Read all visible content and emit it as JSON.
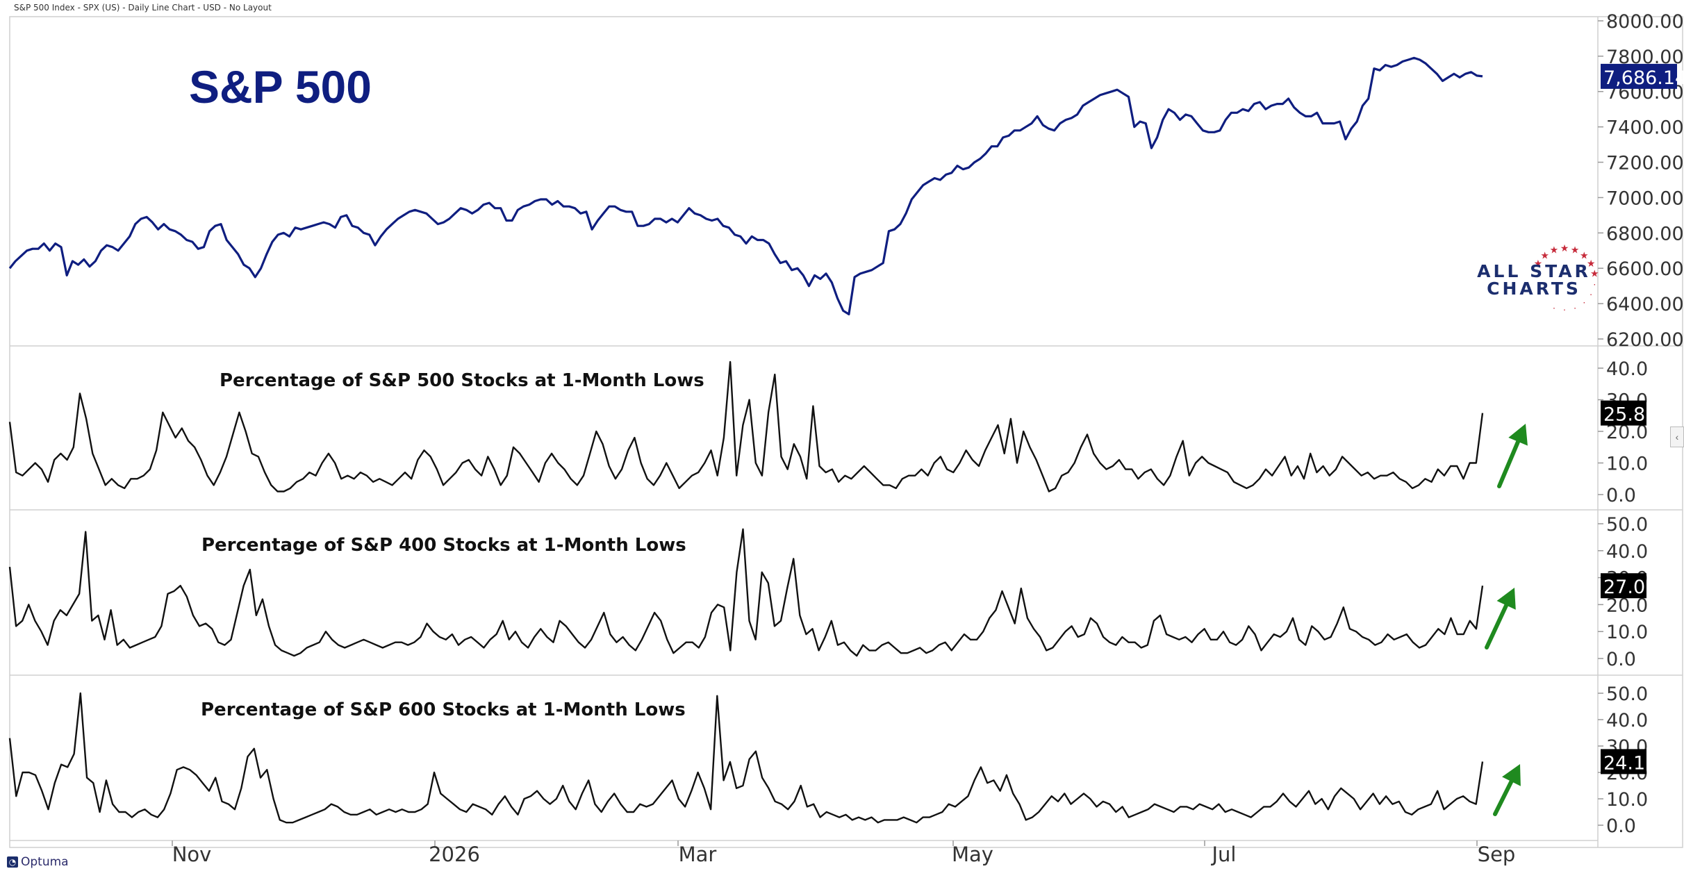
{
  "header": {
    "text": "S&P 500 Index - SPX (US) - Daily Line Chart - USD - No Layout"
  },
  "footer": {
    "logo_text": "Optuma"
  },
  "brand": {
    "line1": "ALL STAR",
    "line2": "CHARTS",
    "star_color": "#c62a3a"
  },
  "colors": {
    "price_line": "#0f1e80",
    "breadth_line": "#111111",
    "arrow": "#1f8a1f",
    "grid": "#d8d8d8",
    "label_bg_price": "#0f1e80",
    "label_bg_breadth": "#000000"
  },
  "x_axis": {
    "labels": [
      "Nov",
      "2026",
      "Mar",
      "May",
      "Jul",
      "Sep"
    ]
  },
  "chart_data": [
    {
      "type": "line",
      "title": "S&P 500",
      "ylim": [
        6200,
        8000
      ],
      "yticks": [
        "8000.00",
        "7800.00",
        "7600.00",
        "7400.00",
        "7200.00",
        "7000.00",
        "6800.00",
        "6600.00",
        "6400.00",
        "6200.00"
      ],
      "last_value": "7,686.14",
      "series": [
        {
          "values": [
            6600,
            6640,
            6670,
            6700,
            6710,
            6710,
            6740,
            6700,
            6740,
            6720,
            6560,
            6640,
            6620,
            6650,
            6610,
            6640,
            6700,
            6730,
            6720,
            6700,
            6740,
            6780,
            6850,
            6880,
            6890,
            6860,
            6820,
            6850,
            6820,
            6810,
            6790,
            6760,
            6750,
            6710,
            6720,
            6810,
            6840,
            6850,
            6760,
            6720,
            6680,
            6620,
            6600,
            6550,
            6600,
            6680,
            6750,
            6790,
            6800,
            6780,
            6830,
            6820,
            6830,
            6840,
            6850,
            6860,
            6850,
            6830,
            6890,
            6900,
            6840,
            6830,
            6800,
            6790,
            6730,
            6780,
            6820,
            6850,
            6880,
            6900,
            6920,
            6930,
            6920,
            6910,
            6880,
            6850,
            6860,
            6880,
            6910,
            6940,
            6930,
            6910,
            6930,
            6960,
            6970,
            6940,
            6940,
            6870,
            6870,
            6930,
            6950,
            6960,
            6980,
            6990,
            6990,
            6960,
            6980,
            6950,
            6950,
            6940,
            6910,
            6920,
            6820,
            6870,
            6910,
            6950,
            6950,
            6930,
            6920,
            6920,
            6840,
            6840,
            6850,
            6880,
            6880,
            6860,
            6880,
            6860,
            6900,
            6940,
            6910,
            6900,
            6880,
            6870,
            6880,
            6840,
            6830,
            6790,
            6780,
            6740,
            6780,
            6760,
            6760,
            6740,
            6680,
            6630,
            6640,
            6590,
            6600,
            6560,
            6500,
            6560,
            6540,
            6570,
            6520,
            6430,
            6360,
            6340,
            6550,
            6570,
            6580,
            6590,
            6610,
            6630,
            6810,
            6820,
            6850,
            6910,
            6990,
            7030,
            7070,
            7090,
            7110,
            7100,
            7130,
            7140,
            7180,
            7160,
            7170,
            7200,
            7220,
            7250,
            7290,
            7290,
            7340,
            7350,
            7380,
            7380,
            7400,
            7420,
            7460,
            7410,
            7390,
            7380,
            7420,
            7440,
            7450,
            7470,
            7520,
            7540,
            7560,
            7580,
            7590,
            7600,
            7610,
            7590,
            7570,
            7400,
            7430,
            7420,
            7280,
            7340,
            7440,
            7500,
            7480,
            7440,
            7470,
            7460,
            7420,
            7380,
            7370,
            7370,
            7380,
            7440,
            7480,
            7480,
            7500,
            7490,
            7530,
            7540,
            7500,
            7520,
            7530,
            7530,
            7560,
            7510,
            7480,
            7460,
            7460,
            7480,
            7420,
            7420,
            7420,
            7430,
            7330,
            7390,
            7430,
            7520,
            7560,
            7730,
            7720,
            7750,
            7740,
            7750,
            7770,
            7780,
            7790,
            7780,
            7760,
            7730,
            7700,
            7660,
            7680,
            7700,
            7680,
            7700,
            7710,
            7690,
            7686
          ]
        }
      ]
    },
    {
      "type": "line",
      "title": "Percentage of S&P 500 Stocks at 1-Month Lows",
      "ylim": [
        0,
        40
      ],
      "yticks": [
        "40.0",
        "30.0",
        "20.0",
        "10.0",
        "0.0"
      ],
      "last_value": "25.8",
      "series": [
        {
          "values": [
            23,
            7,
            6,
            8,
            10,
            8,
            4,
            11,
            13,
            11,
            15,
            32,
            24,
            13,
            8,
            3,
            5,
            3,
            2,
            5,
            5,
            6,
            8,
            14,
            26,
            22,
            18,
            21,
            17,
            15,
            11,
            6,
            3,
            7,
            12,
            19,
            26,
            20,
            13,
            12,
            7,
            3,
            1,
            1,
            2,
            4,
            5,
            7,
            6,
            10,
            13,
            10,
            5,
            6,
            5,
            7,
            6,
            4,
            5,
            4,
            3,
            5,
            7,
            5,
            11,
            14,
            12,
            8,
            3,
            5,
            7,
            10,
            11,
            8,
            6,
            12,
            8,
            3,
            6,
            15,
            13,
            10,
            7,
            4,
            10,
            13,
            10,
            8,
            5,
            3,
            6,
            13,
            20,
            16,
            9,
            5,
            8,
            14,
            18,
            10,
            5,
            3,
            6,
            10,
            6,
            2,
            4,
            6,
            7,
            10,
            14,
            6,
            18,
            42,
            6,
            22,
            30,
            10,
            6,
            26,
            38,
            12,
            8,
            16,
            12,
            5,
            28,
            9,
            7,
            8,
            4,
            6,
            5,
            7,
            9,
            7,
            5,
            3,
            3,
            2,
            5,
            6,
            6,
            8,
            6,
            10,
            12,
            8,
            7,
            10,
            14,
            11,
            9,
            14,
            18,
            22,
            13,
            24,
            10,
            20,
            15,
            11,
            6,
            1,
            2,
            6,
            7,
            10,
            15,
            19,
            13,
            10,
            8,
            9,
            11,
            8,
            8,
            5,
            7,
            8,
            5,
            3,
            6,
            12,
            17,
            6,
            10,
            12,
            10,
            9,
            8,
            7,
            4,
            3,
            2,
            3,
            5,
            8,
            6,
            9,
            12,
            6,
            9,
            5,
            13,
            7,
            9,
            6,
            8,
            12,
            10,
            8,
            6,
            7,
            5,
            6,
            6,
            7,
            5,
            4,
            2,
            3,
            5,
            4,
            8,
            6,
            9,
            9,
            5,
            10,
            10,
            25.8
          ]
        }
      ]
    },
    {
      "type": "line",
      "title": "Percentage of S&P 400 Stocks at 1-Month Lows",
      "ylim": [
        0,
        50
      ],
      "yticks": [
        "50.0",
        "40.0",
        "30.0",
        "20.0",
        "10.0",
        "0.0"
      ],
      "last_value": "27.0",
      "series": [
        {
          "values": [
            34,
            12,
            14,
            20,
            14,
            10,
            5,
            14,
            18,
            16,
            20,
            24,
            47,
            14,
            16,
            7,
            18,
            5,
            7,
            4,
            5,
            6,
            7,
            8,
            12,
            24,
            25,
            27,
            23,
            16,
            12,
            13,
            11,
            6,
            5,
            7,
            17,
            27,
            33,
            16,
            22,
            12,
            5,
            3,
            2,
            1,
            2,
            4,
            5,
            6,
            10,
            7,
            5,
            4,
            5,
            6,
            7,
            6,
            5,
            4,
            5,
            6,
            6,
            5,
            6,
            8,
            13,
            10,
            8,
            7,
            9,
            5,
            7,
            8,
            6,
            4,
            7,
            9,
            14,
            7,
            10,
            6,
            4,
            8,
            11,
            8,
            6,
            14,
            12,
            9,
            6,
            4,
            7,
            12,
            17,
            9,
            6,
            8,
            5,
            3,
            7,
            12,
            17,
            14,
            7,
            2,
            4,
            6,
            6,
            4,
            8,
            17,
            20,
            19,
            3,
            32,
            48,
            14,
            7,
            32,
            28,
            12,
            14,
            26,
            37,
            16,
            9,
            11,
            3,
            8,
            14,
            5,
            6,
            3,
            1,
            5,
            3,
            3,
            5,
            6,
            4,
            2,
            2,
            3,
            4,
            2,
            3,
            5,
            6,
            3,
            6,
            9,
            7,
            7,
            10,
            15,
            18,
            25,
            19,
            13,
            26,
            15,
            11,
            8,
            3,
            4,
            7,
            10,
            12,
            8,
            9,
            15,
            13,
            8,
            6,
            5,
            8,
            6,
            6,
            4,
            5,
            14,
            16,
            9,
            8,
            7,
            8,
            6,
            9,
            11,
            7,
            7,
            10,
            6,
            5,
            7,
            12,
            9,
            3,
            6,
            9,
            8,
            10,
            15,
            7,
            5,
            12,
            10,
            7,
            8,
            13,
            19,
            11,
            10,
            8,
            7,
            5,
            6,
            9,
            7,
            8,
            9,
            6,
            4,
            5,
            8,
            11,
            9,
            15,
            9,
            9,
            14,
            11,
            27
          ]
        }
      ]
    },
    {
      "type": "line",
      "title": "Percentage of S&P 600 Stocks at 1-Month Lows",
      "ylim": [
        0,
        50
      ],
      "yticks": [
        "50.0",
        "40.0",
        "30.0",
        "20.0",
        "10.0",
        "0.0"
      ],
      "last_value": "24.1",
      "series": [
        {
          "values": [
            33,
            11,
            20,
            20,
            19,
            13,
            6,
            16,
            23,
            22,
            27,
            50,
            18,
            16,
            5,
            17,
            8,
            5,
            5,
            3,
            5,
            6,
            4,
            3,
            6,
            12,
            21,
            22,
            21,
            19,
            16,
            13,
            18,
            9,
            8,
            6,
            14,
            26,
            29,
            18,
            21,
            10,
            2,
            1,
            1,
            2,
            3,
            4,
            5,
            6,
            8,
            7,
            5,
            4,
            4,
            5,
            6,
            4,
            5,
            6,
            5,
            6,
            5,
            5,
            6,
            8,
            20,
            12,
            10,
            8,
            6,
            5,
            8,
            7,
            6,
            4,
            8,
            11,
            7,
            4,
            10,
            11,
            13,
            10,
            8,
            10,
            15,
            9,
            6,
            12,
            17,
            8,
            5,
            9,
            12,
            8,
            5,
            5,
            8,
            7,
            8,
            11,
            14,
            17,
            10,
            7,
            13,
            20,
            14,
            6,
            49,
            17,
            24,
            14,
            15,
            25,
            28,
            18,
            14,
            9,
            8,
            6,
            9,
            15,
            7,
            8,
            3,
            5,
            4,
            3,
            4,
            2,
            3,
            2,
            3,
            1,
            2,
            2,
            2,
            3,
            2,
            1,
            3,
            3,
            4,
            5,
            8,
            7,
            9,
            11,
            17,
            22,
            16,
            17,
            13,
            19,
            12,
            8,
            2,
            3,
            5,
            8,
            11,
            9,
            12,
            8,
            10,
            12,
            10,
            7,
            9,
            8,
            5,
            7,
            3,
            4,
            5,
            6,
            8,
            7,
            6,
            5,
            7,
            7,
            6,
            8,
            7,
            6,
            8,
            5,
            6,
            5,
            4,
            3,
            5,
            7,
            7,
            9,
            12,
            9,
            7,
            10,
            13,
            8,
            10,
            6,
            11,
            14,
            12,
            10,
            6,
            9,
            12,
            8,
            11,
            8,
            9,
            5,
            4,
            6,
            7,
            8,
            13,
            6,
            8,
            10,
            11,
            9,
            8,
            24.1
          ]
        }
      ]
    }
  ]
}
